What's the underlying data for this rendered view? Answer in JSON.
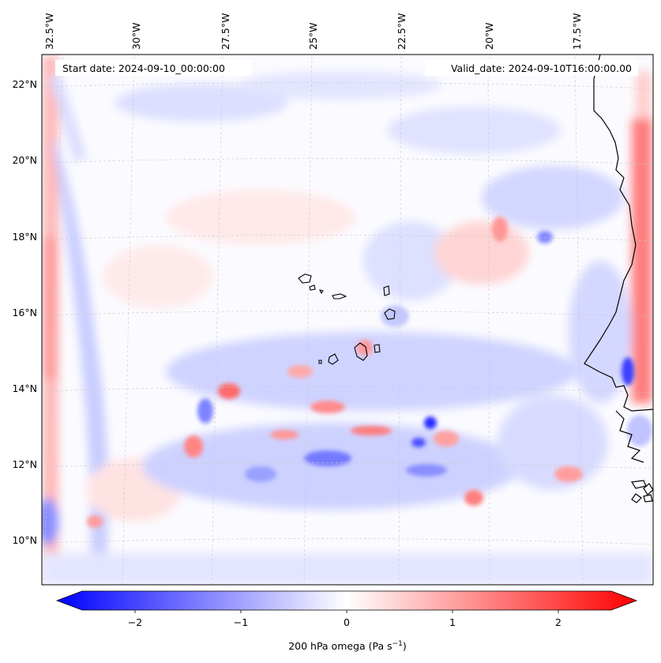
{
  "map": {
    "start_date_label": "Start date: 2024-09-10_00:00:00",
    "valid_date_label": "Valid_date: 2024-09-10T16:00:00.00",
    "lon_labels": [
      "32.5°W",
      "30°W",
      "27.5°W",
      "25°W",
      "22.5°W",
      "20°W",
      "17.5°W"
    ],
    "lat_labels": [
      "22°N",
      "20°N",
      "18°N",
      "16°N",
      "14°N",
      "12°N",
      "10°N"
    ],
    "field": "200 hPa omega",
    "color_scale": {
      "negative": "#0000ff",
      "zero": "#ffffff",
      "positive": "#ff0000"
    }
  },
  "colorbar": {
    "ticks": [
      "−2",
      "−1",
      "0",
      "1",
      "2"
    ],
    "tick_values": [
      -2,
      -1,
      0,
      1,
      2
    ],
    "range": [
      -2.5,
      2.5
    ],
    "label_main": "200 hPa omega (Pa s",
    "label_exp": "−1",
    "label_close": ")"
  }
}
